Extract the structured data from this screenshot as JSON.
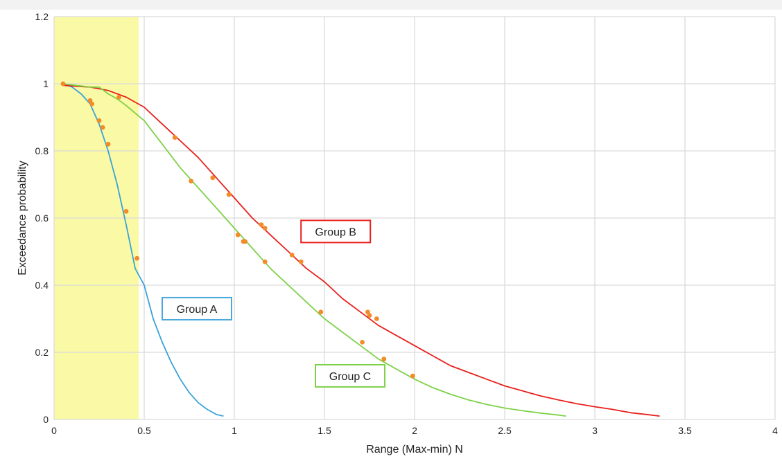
{
  "chart_data": {
    "type": "scatter",
    "xlabel": "Range (Max-min) N",
    "ylabel": "Exceedance probability",
    "xlim": [
      0,
      4
    ],
    "ylim": [
      0,
      1.2
    ],
    "x_ticks": [
      "0",
      "0.5",
      "1",
      "1.5",
      "2",
      "2.5",
      "3",
      "3.5",
      "4"
    ],
    "y_ticks": [
      "0",
      "0.2",
      "0.4",
      "0.6",
      "0.8",
      "1",
      "1.2"
    ],
    "grid": true,
    "highlight_region": {
      "x_start": 0,
      "x_end": 0.47,
      "color": "#fafaa6"
    },
    "series": [
      {
        "label": "Group A",
        "color": "#3aa2d8",
        "label_anchor": {
          "x": 0.6,
          "y": 0.33
        },
        "label_border": "#4aa8dc",
        "curve": [
          [
            0.05,
            1.0
          ],
          [
            0.1,
            0.99
          ],
          [
            0.15,
            0.97
          ],
          [
            0.2,
            0.94
          ],
          [
            0.25,
            0.88
          ],
          [
            0.3,
            0.8
          ],
          [
            0.35,
            0.7
          ],
          [
            0.4,
            0.58
          ],
          [
            0.45,
            0.45
          ],
          [
            0.5,
            0.4
          ],
          [
            0.55,
            0.3
          ],
          [
            0.6,
            0.23
          ],
          [
            0.65,
            0.17
          ],
          [
            0.7,
            0.12
          ],
          [
            0.75,
            0.08
          ],
          [
            0.8,
            0.05
          ],
          [
            0.85,
            0.03
          ],
          [
            0.9,
            0.015
          ],
          [
            0.94,
            0.01
          ]
        ]
      },
      {
        "label": "Group B",
        "color": "#e8201c",
        "label_anchor": {
          "x": 1.37,
          "y": 0.56
        },
        "label_border": "#e8201c",
        "curve": [
          [
            0.05,
            0.995
          ],
          [
            0.2,
            0.99
          ],
          [
            0.3,
            0.98
          ],
          [
            0.4,
            0.96
          ],
          [
            0.5,
            0.93
          ],
          [
            0.6,
            0.88
          ],
          [
            0.7,
            0.83
          ],
          [
            0.8,
            0.78
          ],
          [
            0.9,
            0.72
          ],
          [
            1.0,
            0.66
          ],
          [
            1.1,
            0.6
          ],
          [
            1.2,
            0.55
          ],
          [
            1.3,
            0.5
          ],
          [
            1.4,
            0.45
          ],
          [
            1.5,
            0.41
          ],
          [
            1.6,
            0.36
          ],
          [
            1.7,
            0.32
          ],
          [
            1.8,
            0.28
          ],
          [
            1.9,
            0.25
          ],
          [
            2.0,
            0.22
          ],
          [
            2.1,
            0.19
          ],
          [
            2.2,
            0.16
          ],
          [
            2.3,
            0.14
          ],
          [
            2.4,
            0.12
          ],
          [
            2.5,
            0.1
          ],
          [
            2.6,
            0.085
          ],
          [
            2.7,
            0.07
          ],
          [
            2.8,
            0.058
          ],
          [
            2.9,
            0.047
          ],
          [
            3.0,
            0.038
          ],
          [
            3.1,
            0.03
          ],
          [
            3.2,
            0.02
          ],
          [
            3.3,
            0.014
          ],
          [
            3.36,
            0.01
          ]
        ]
      },
      {
        "label": "Group C",
        "color": "#7ed14a",
        "label_anchor": {
          "x": 1.45,
          "y": 0.13
        },
        "label_border": "#7ed14a",
        "curve": [
          [
            0.05,
            1.0
          ],
          [
            0.2,
            0.99
          ],
          [
            0.25,
            0.99
          ],
          [
            0.3,
            0.97
          ],
          [
            0.35,
            0.955
          ],
          [
            0.4,
            0.935
          ],
          [
            0.5,
            0.89
          ],
          [
            0.6,
            0.82
          ],
          [
            0.7,
            0.75
          ],
          [
            0.8,
            0.69
          ],
          [
            0.9,
            0.63
          ],
          [
            1.0,
            0.57
          ],
          [
            1.1,
            0.51
          ],
          [
            1.2,
            0.45
          ],
          [
            1.3,
            0.4
          ],
          [
            1.4,
            0.35
          ],
          [
            1.5,
            0.3
          ],
          [
            1.6,
            0.26
          ],
          [
            1.7,
            0.22
          ],
          [
            1.8,
            0.18
          ],
          [
            1.9,
            0.15
          ],
          [
            2.0,
            0.12
          ],
          [
            2.1,
            0.095
          ],
          [
            2.2,
            0.075
          ],
          [
            2.3,
            0.058
          ],
          [
            2.4,
            0.045
          ],
          [
            2.5,
            0.034
          ],
          [
            2.6,
            0.026
          ],
          [
            2.7,
            0.019
          ],
          [
            2.8,
            0.013
          ],
          [
            2.84,
            0.01
          ]
        ]
      }
    ],
    "points_color": "#f28c28",
    "points": [
      [
        0.05,
        1.0
      ],
      [
        0.2,
        0.95
      ],
      [
        0.21,
        0.94
      ],
      [
        0.25,
        0.89
      ],
      [
        0.27,
        0.87
      ],
      [
        0.3,
        0.82
      ],
      [
        0.36,
        0.96
      ],
      [
        0.4,
        0.62
      ],
      [
        0.46,
        0.48
      ],
      [
        0.67,
        0.84
      ],
      [
        0.76,
        0.71
      ],
      [
        0.88,
        0.72
      ],
      [
        0.97,
        0.67
      ],
      [
        1.02,
        0.55
      ],
      [
        1.05,
        0.53
      ],
      [
        1.06,
        0.53
      ],
      [
        1.15,
        0.58
      ],
      [
        1.17,
        0.57
      ],
      [
        1.17,
        0.47
      ],
      [
        1.32,
        0.49
      ],
      [
        1.37,
        0.47
      ],
      [
        1.48,
        0.32
      ],
      [
        1.71,
        0.23
      ],
      [
        1.74,
        0.32
      ],
      [
        1.75,
        0.31
      ],
      [
        1.79,
        0.3
      ],
      [
        1.83,
        0.18
      ],
      [
        1.99,
        0.13
      ]
    ]
  }
}
